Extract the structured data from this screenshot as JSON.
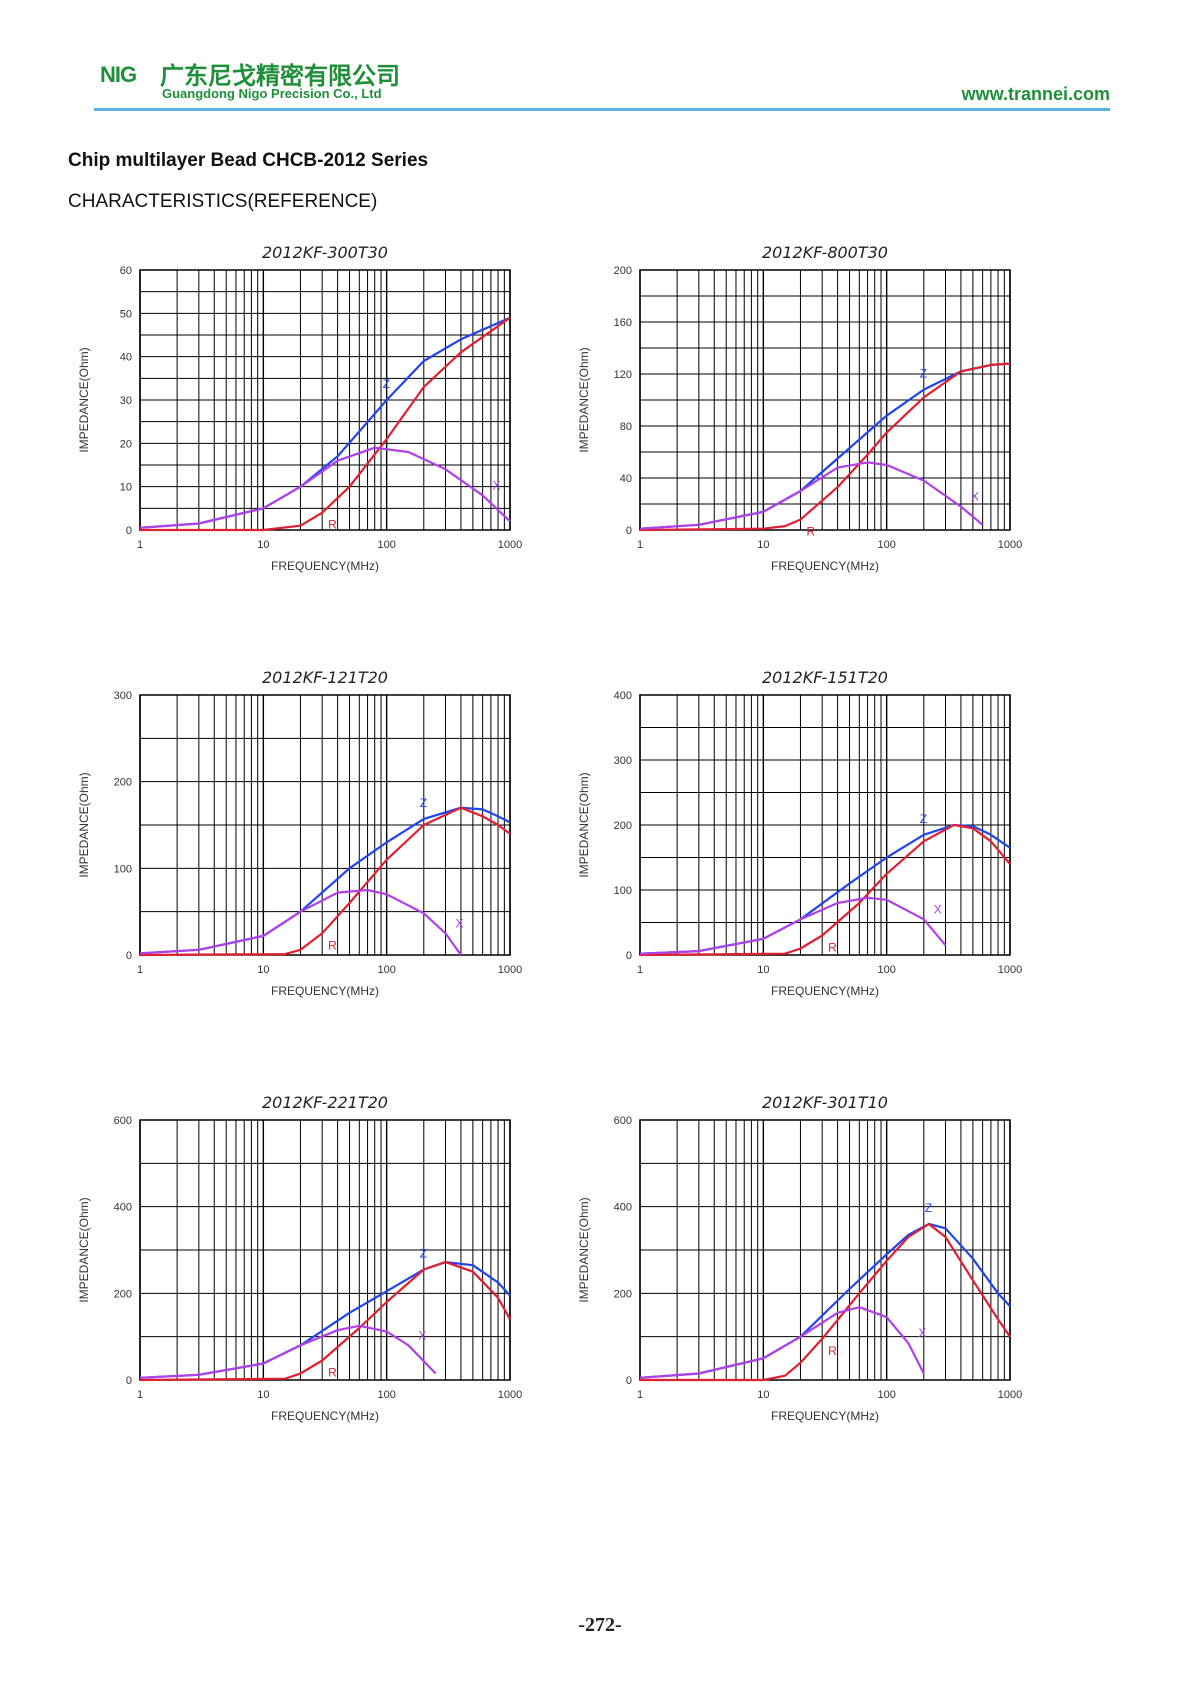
{
  "header": {
    "logo": "NIG",
    "company_cn": "广东尼戈精密有限公司",
    "company_en": "Guangdong Nigo Precision Co., Ltd",
    "website": "www.trannei.com"
  },
  "page": {
    "series_title": "Chip multilayer Bead CHCB-2012 Series",
    "subtitle": "CHARACTERISTICS(REFERENCE)",
    "page_number": "-272-"
  },
  "colors": {
    "Z": "#2244ee",
    "R": "#e02030",
    "X": "#b040e8",
    "grid": "#000000",
    "accent": "#1f8f3a"
  },
  "chart_data": [
    {
      "type": "line",
      "title": "2012KF-300T30",
      "xlabel": "FREQUENCY(MHz)",
      "ylabel": "IMPEDANCE(Ohm)",
      "xscale": "log",
      "xlim": [
        1,
        1000
      ],
      "ylim": [
        0,
        60
      ],
      "xticks": [
        "1",
        "10",
        "100",
        "1000"
      ],
      "yticks": [
        0,
        10,
        20,
        30,
        40,
        50,
        60
      ],
      "series": [
        {
          "name": "Z",
          "x": [
            1,
            3,
            10,
            20,
            40,
            100,
            200,
            400,
            1000
          ],
          "y": [
            0.5,
            1.5,
            5,
            10,
            17,
            30,
            39,
            44,
            49
          ]
        },
        {
          "name": "R",
          "x": [
            1,
            10,
            20,
            30,
            50,
            100,
            200,
            400,
            1000
          ],
          "y": [
            0,
            0,
            1,
            4,
            10,
            21,
            33,
            41,
            49
          ]
        },
        {
          "name": "X",
          "x": [
            1,
            3,
            10,
            20,
            40,
            80,
            150,
            300,
            600,
            1000
          ],
          "y": [
            0.5,
            1.5,
            5,
            10,
            16,
            19,
            18,
            14,
            8,
            2
          ]
        }
      ]
    },
    {
      "type": "line",
      "title": "2012KF-800T30",
      "xlabel": "FREQUENCY(MHz)",
      "ylabel": "IMPEDANCE(Ohm)",
      "xscale": "log",
      "xlim": [
        1,
        1000
      ],
      "ylim": [
        0,
        200
      ],
      "xticks": [
        "1",
        "10",
        "100",
        "1000"
      ],
      "yticks": [
        0,
        40,
        80,
        120,
        160,
        200
      ],
      "series": [
        {
          "name": "Z",
          "x": [
            1,
            3,
            10,
            20,
            40,
            100,
            200,
            400,
            700,
            1000
          ],
          "y": [
            1,
            4,
            14,
            30,
            55,
            88,
            108,
            122,
            127,
            128
          ]
        },
        {
          "name": "R",
          "x": [
            1,
            10,
            15,
            20,
            40,
            70,
            100,
            200,
            400,
            700,
            1000
          ],
          "y": [
            0,
            1,
            3,
            8,
            33,
            58,
            75,
            102,
            122,
            127,
            128
          ]
        },
        {
          "name": "X",
          "x": [
            1,
            3,
            10,
            20,
            40,
            70,
            100,
            200,
            400,
            600
          ],
          "y": [
            1,
            4,
            14,
            30,
            48,
            52,
            50,
            38,
            18,
            4
          ]
        }
      ]
    },
    {
      "type": "line",
      "title": "2012KF-121T20",
      "xlabel": "FREQUENCY(MHz)",
      "ylabel": "IMPEDANCE(Ohm)",
      "xscale": "log",
      "xlim": [
        1,
        1000
      ],
      "ylim": [
        0,
        300
      ],
      "xticks": [
        "1",
        "10",
        "100",
        "1000"
      ],
      "yticks": [
        0,
        100,
        200,
        300
      ],
      "series": [
        {
          "name": "Z",
          "x": [
            1,
            3,
            10,
            20,
            50,
            100,
            200,
            400,
            600,
            800,
            1000
          ],
          "y": [
            2,
            6,
            22,
            50,
            100,
            130,
            157,
            170,
            168,
            160,
            153
          ]
        },
        {
          "name": "R",
          "x": [
            1,
            15,
            20,
            30,
            50,
            100,
            200,
            400,
            600,
            800,
            1000
          ],
          "y": [
            0,
            1,
            6,
            25,
            60,
            110,
            150,
            170,
            160,
            150,
            140
          ]
        },
        {
          "name": "X",
          "x": [
            1,
            3,
            10,
            20,
            40,
            70,
            100,
            200,
            300,
            400
          ],
          "y": [
            2,
            6,
            22,
            50,
            72,
            75,
            70,
            48,
            25,
            0
          ]
        }
      ]
    },
    {
      "type": "line",
      "title": "2012KF-151T20",
      "xlabel": "FREQUENCY(MHz)",
      "ylabel": "IMPEDANCE(Ohm)",
      "xscale": "log",
      "xlim": [
        1,
        1000
      ],
      "ylim": [
        0,
        400
      ],
      "xticks": [
        "1",
        "10",
        "100",
        "1000"
      ],
      "yticks": [
        0,
        100,
        200,
        300,
        400
      ],
      "series": [
        {
          "name": "Z",
          "x": [
            1,
            3,
            10,
            20,
            50,
            100,
            200,
            350,
            500,
            700,
            1000
          ],
          "y": [
            2,
            6,
            25,
            55,
            110,
            150,
            185,
            200,
            198,
            185,
            165
          ]
        },
        {
          "name": "R",
          "x": [
            1,
            15,
            20,
            30,
            60,
            100,
            200,
            350,
            500,
            700,
            1000
          ],
          "y": [
            0,
            2,
            10,
            30,
            80,
            125,
            175,
            200,
            195,
            175,
            140
          ]
        },
        {
          "name": "X",
          "x": [
            1,
            3,
            10,
            20,
            40,
            70,
            100,
            200,
            300
          ],
          "y": [
            2,
            6,
            25,
            55,
            80,
            88,
            85,
            55,
            15
          ]
        }
      ]
    },
    {
      "type": "line",
      "title": "2012KF-221T20",
      "xlabel": "FREQUENCY(MHz)",
      "ylabel": "IMPEDANCE(Ohm)",
      "xscale": "log",
      "xlim": [
        1,
        1000
      ],
      "ylim": [
        0,
        600
      ],
      "xticks": [
        "1",
        "10",
        "100",
        "1000"
      ],
      "yticks": [
        0,
        200,
        400,
        600
      ],
      "series": [
        {
          "name": "Z",
          "x": [
            1,
            3,
            10,
            20,
            50,
            100,
            200,
            300,
            500,
            800,
            1000
          ],
          "y": [
            5,
            12,
            38,
            80,
            155,
            205,
            255,
            272,
            265,
            225,
            195
          ]
        },
        {
          "name": "R",
          "x": [
            1,
            15,
            20,
            30,
            60,
            100,
            200,
            300,
            500,
            800,
            1000
          ],
          "y": [
            0,
            3,
            15,
            45,
            120,
            180,
            255,
            272,
            250,
            190,
            140
          ]
        },
        {
          "name": "X",
          "x": [
            1,
            3,
            10,
            20,
            40,
            60,
            100,
            150,
            250
          ],
          "y": [
            5,
            12,
            38,
            80,
            115,
            125,
            112,
            80,
            15
          ]
        }
      ]
    },
    {
      "type": "line",
      "title": "2012KF-301T10",
      "xlabel": "FREQUENCY(MHz)",
      "ylabel": "IMPEDANCE(Ohm)",
      "xscale": "log",
      "xlim": [
        1,
        1000
      ],
      "ylim": [
        0,
        600
      ],
      "xticks": [
        "1",
        "10",
        "100",
        "1000"
      ],
      "yticks": [
        0,
        200,
        400,
        600
      ],
      "series": [
        {
          "name": "Z",
          "x": [
            1,
            3,
            10,
            20,
            50,
            100,
            150,
            220,
            300,
            500,
            800,
            1000
          ],
          "y": [
            5,
            15,
            50,
            100,
            210,
            290,
            335,
            360,
            350,
            280,
            200,
            170
          ]
        },
        {
          "name": "R",
          "x": [
            1,
            10,
            15,
            20,
            30,
            60,
            100,
            150,
            220,
            300,
            500,
            800,
            1000
          ],
          "y": [
            0,
            0,
            10,
            40,
            95,
            200,
            275,
            330,
            360,
            330,
            230,
            140,
            100
          ]
        },
        {
          "name": "X",
          "x": [
            1,
            3,
            10,
            20,
            40,
            60,
            100,
            150,
            200
          ],
          "y": [
            5,
            15,
            50,
            100,
            155,
            168,
            145,
            85,
            15
          ]
        }
      ]
    }
  ]
}
